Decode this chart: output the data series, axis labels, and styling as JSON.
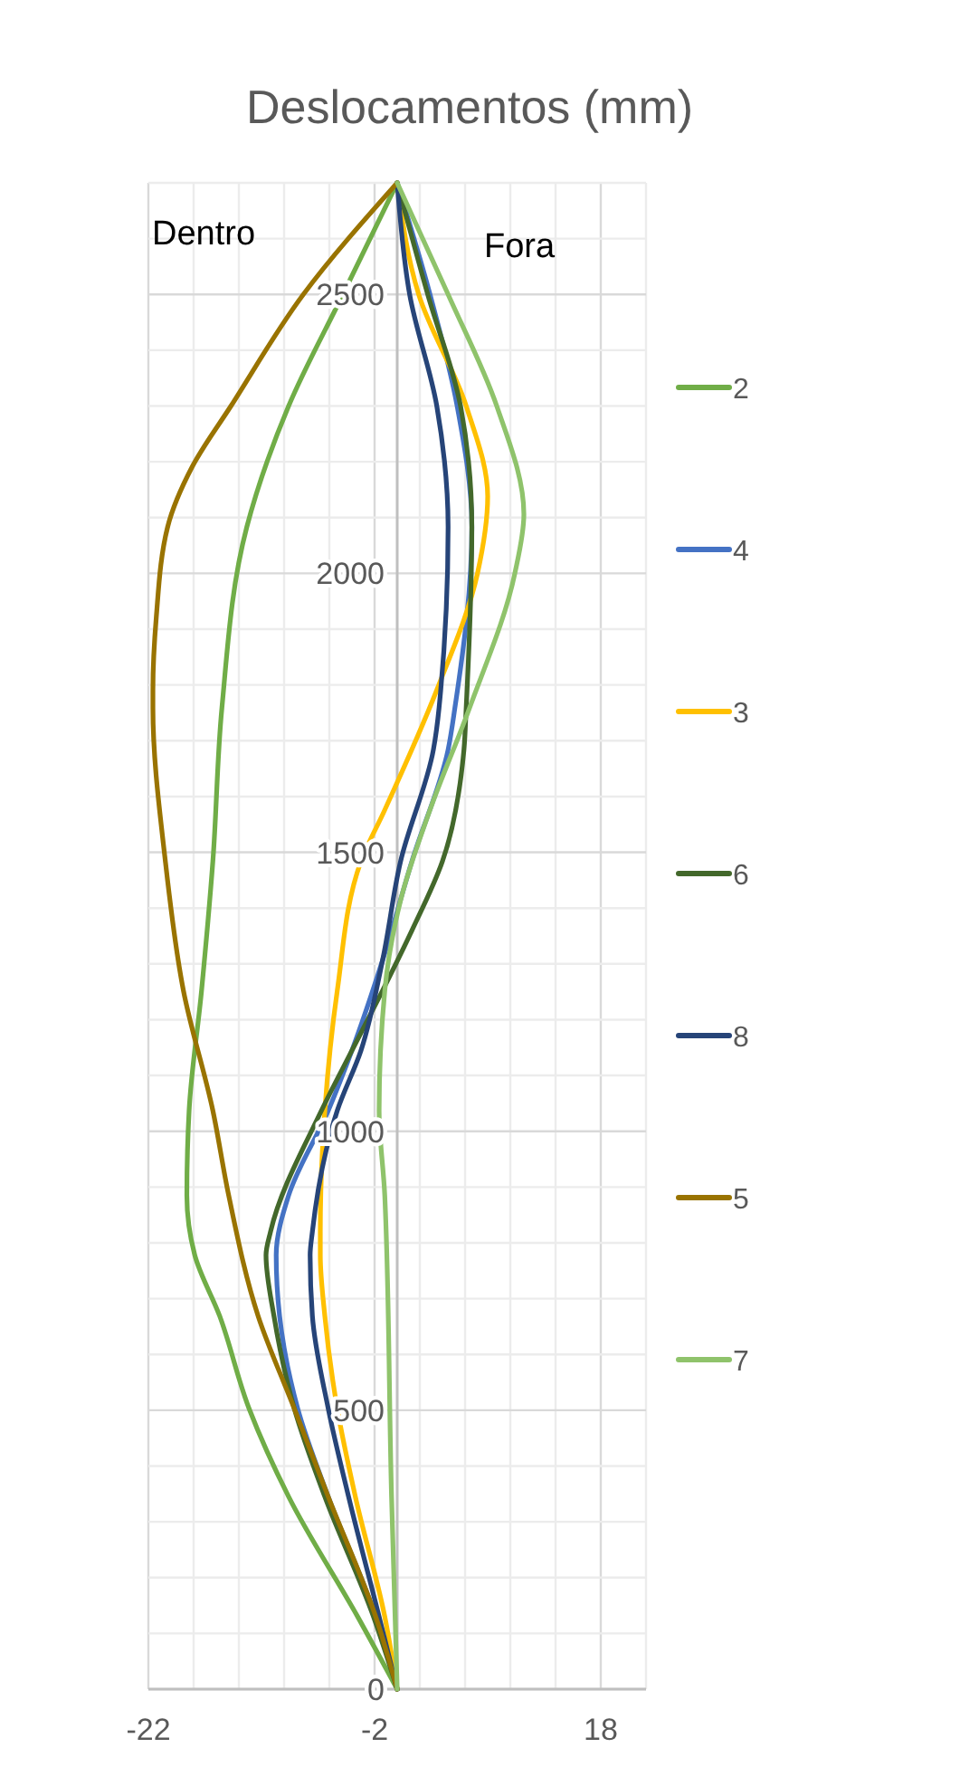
{
  "chart_data": {
    "type": "line",
    "title": "Deslocamentos (mm)",
    "annotations": [
      "Dentro",
      "Fora"
    ],
    "xlim": [
      -22,
      22
    ],
    "xticks": [
      {
        "value": -22,
        "label": "-22"
      },
      {
        "value": -18,
        "label": null
      },
      {
        "value": -14,
        "label": null
      },
      {
        "value": -10,
        "label": null
      },
      {
        "value": -6,
        "label": null
      },
      {
        "value": -2,
        "label": "-2"
      },
      {
        "value": 2,
        "label": null
      },
      {
        "value": 6,
        "label": null
      },
      {
        "value": 10,
        "label": null
      },
      {
        "value": 14,
        "label": null
      },
      {
        "value": 18,
        "label": "18"
      },
      {
        "value": 22,
        "label": null
      }
    ],
    "ylim": [
      0,
      2700
    ],
    "yticks": [
      0,
      {
        "value": 100,
        "label": null
      },
      {
        "value": 200,
        "label": null
      },
      {
        "value": 300,
        "label": null
      },
      {
        "value": 400,
        "label": null
      },
      500,
      {
        "value": 600,
        "label": null
      },
      {
        "value": 700,
        "label": null
      },
      {
        "value": 800,
        "label": null
      },
      {
        "value": 900,
        "label": null
      },
      1000,
      {
        "value": 1100,
        "label": null
      },
      {
        "value": 1200,
        "label": null
      },
      {
        "value": 1300,
        "label": null
      },
      {
        "value": 1400,
        "label": null
      },
      1500,
      {
        "value": 1600,
        "label": null
      },
      {
        "value": 1700,
        "label": null
      },
      {
        "value": 1800,
        "label": null
      },
      {
        "value": 1900,
        "label": null
      },
      2000,
      {
        "value": 2100,
        "label": null
      },
      {
        "value": 2200,
        "label": null
      },
      {
        "value": 2300,
        "label": null
      },
      {
        "value": 2400,
        "label": null
      },
      2500,
      {
        "value": 2600,
        "label": null
      }
    ],
    "grid": true,
    "legend": "right",
    "marker": "none",
    "line_style": "solid",
    "series": [
      {
        "name": "2",
        "color": "#70ad47",
        "x": [
          0,
          -3.5,
          -9.6,
          -13.1,
          -15.7,
          -17.9,
          -18.6,
          -18.4,
          -17.3,
          -16.3,
          -15.5,
          -13.3,
          -9.6,
          -4.8,
          0
        ],
        "values": [
          0,
          130,
          345,
          503,
          669,
          778,
          885,
          1037,
          1252,
          1484,
          1759,
          2083,
          2300,
          2500,
          2700
        ]
      },
      {
        "name": "4",
        "color": "#4472c4",
        "x": [
          0,
          -1.9,
          -6.1,
          -8.8,
          -10.4,
          -10.7,
          -9.6,
          -6.1,
          -4.0,
          -1.3,
          1.3,
          4.5,
          5.1,
          6.6,
          5.3,
          2.9,
          0
        ],
        "values": [
          0,
          130,
          345,
          503,
          669,
          778,
          885,
          1037,
          1145,
          1306,
          1484,
          1684,
          1759,
          2083,
          2300,
          2500,
          2700
        ]
      },
      {
        "name": "3",
        "color": "#ffc000",
        "x": [
          0,
          -1.1,
          -3.7,
          -5.3,
          -6.4,
          -6.8,
          -6.8,
          -6.4,
          -5.3,
          -3.2,
          -1.1,
          3.5,
          7.1,
          8.0,
          6.1,
          1.9,
          0
        ],
        "values": [
          0,
          130,
          345,
          503,
          669,
          778,
          820,
          1037,
          1252,
          1484,
          1576,
          1791,
          2000,
          2138,
          2300,
          2500,
          2700
        ]
      },
      {
        "name": "6",
        "color": "#43682b",
        "x": [
          0,
          -2.1,
          -6.4,
          -9.1,
          -10.9,
          -11.6,
          -11.2,
          -6.7,
          -4.0,
          -1.3,
          1.3,
          4.0,
          5.9,
          6.1,
          6.6,
          5.6,
          2.7,
          0
        ],
        "values": [
          0,
          130,
          345,
          503,
          669,
          778,
          820,
          1037,
          1145,
          1252,
          1360,
          1484,
          1684,
          1759,
          2083,
          2300,
          2500,
          2700
        ]
      },
      {
        "name": "8",
        "color": "#264478",
        "x": [
          0,
          -1.6,
          -4.3,
          -6.1,
          -7.5,
          -7.7,
          -7.5,
          -5.3,
          -3.2,
          -1.3,
          0.3,
          3.2,
          3.7,
          4.5,
          3.5,
          1.1,
          0
        ],
        "values": [
          0,
          130,
          345,
          503,
          669,
          778,
          820,
          1037,
          1145,
          1306,
          1484,
          1684,
          1759,
          2083,
          2300,
          2500,
          2700
        ]
      },
      {
        "name": "5",
        "color": "#997300",
        "x": [
          0,
          -1.9,
          -6.1,
          -9.1,
          -12.3,
          -14.9,
          -16.3,
          -18.9,
          -20.5,
          -21.6,
          -21.6,
          -21.3,
          -20.3,
          -18.1,
          -14.7,
          -8.3,
          0
        ],
        "values": [
          0,
          130,
          345,
          503,
          669,
          885,
          1037,
          1252,
          1484,
          1759,
          1791,
          1922,
          2083,
          2192,
          2300,
          2500,
          2700
        ]
      },
      {
        "name": "7",
        "color": "#8fc36b",
        "x": [
          0,
          -0.5,
          -1.1,
          -1.6,
          -1.1,
          0.3,
          2.9,
          6.4,
          10.4,
          11.2,
          8.8,
          4.5,
          0
        ],
        "values": [
          0,
          345,
          885,
          1037,
          1252,
          1414,
          1576,
          1759,
          2000,
          2106,
          2300,
          2500,
          2700
        ]
      }
    ]
  }
}
